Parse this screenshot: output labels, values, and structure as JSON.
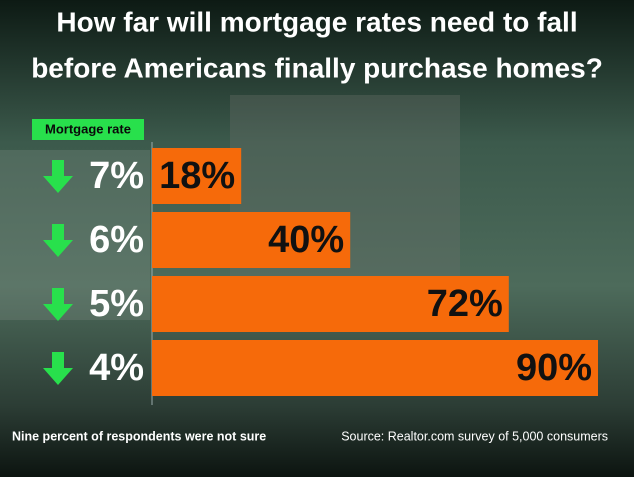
{
  "chart_data": {
    "type": "bar",
    "orientation": "horizontal",
    "title_lines": [
      "How far will mortgage rates need to fall",
      "before Americans finally purchase homes?"
    ],
    "category_label": "Mortgage rate",
    "categories": [
      "7%",
      "6%",
      "5%",
      "4%"
    ],
    "values": [
      18,
      40,
      72,
      90
    ],
    "value_labels": [
      "18%",
      "40%",
      "72%",
      "90%"
    ],
    "color": "#f66a0a",
    "xlim": [
      0,
      90
    ],
    "footnote": "Nine percent of respondents were not sure",
    "source": "Source: Realtor.com survey of 5,000 consumers"
  }
}
